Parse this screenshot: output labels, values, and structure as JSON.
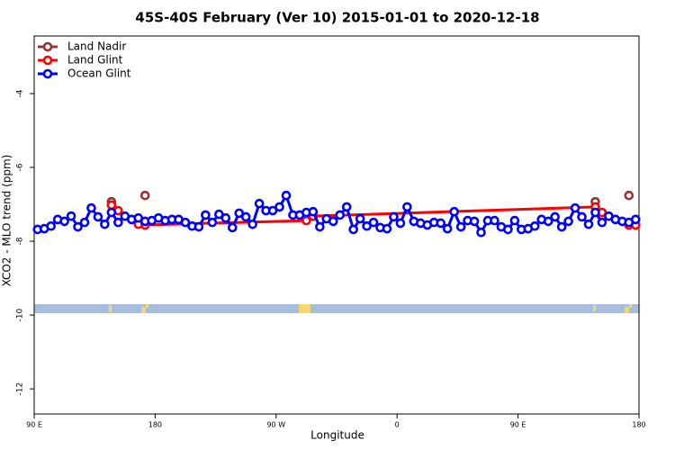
{
  "chart_data": {
    "type": "line",
    "title": "45S-40S February (Ver 10)   2015-01-01 to 2020-12-18",
    "x_label": "Longitude",
    "y_label": "XCO2 - MLO trend (ppm)",
    "xlim": [
      90,
      540
    ],
    "ylim": [
      -12.68,
      -2.44
    ],
    "xticks": [
      {
        "value": 90,
        "label": "90 E"
      },
      {
        "value": 180,
        "label": "180"
      },
      {
        "value": 270,
        "label": "90 W"
      },
      {
        "value": 360,
        "label": "0"
      },
      {
        "value": 450,
        "label": "90 E"
      },
      {
        "value": 540,
        "label": "180"
      }
    ],
    "yticks": [
      -4,
      -6,
      -8,
      -10,
      -12
    ],
    "legend": "top-left",
    "series": [
      {
        "name": "Land Nadir",
        "color": "#993333",
        "x": [
          147.5,
          172.5,
          507.5,
          532.5
        ],
        "values": [
          -6.93,
          -6.76,
          -6.93,
          -6.76
        ]
      },
      {
        "name": "Land Glint",
        "color": "#ff0000",
        "x": [
          147.5,
          152.5,
          167.5,
          172.5,
          292.5,
          297.5,
          507.5,
          512.5,
          532.5,
          537.5
        ],
        "values": [
          -7.02,
          -7.17,
          -7.54,
          -7.56,
          -7.44,
          -7.32,
          -7.07,
          -7.22,
          -7.56,
          -7.56
        ]
      },
      {
        "name": "Ocean Glint",
        "color": "#0000ff",
        "x": [
          92.5,
          97.5,
          102.5,
          107.5,
          112.5,
          117.5,
          122.5,
          127.5,
          132.5,
          137.5,
          142.5,
          147.5,
          152.5,
          157.5,
          162.5,
          167.5,
          172.5,
          177.5,
          182.5,
          187.5,
          192.5,
          197.5,
          202.5,
          207.5,
          212.5,
          217.5,
          222.5,
          227.5,
          232.5,
          237.5,
          242.5,
          247.5,
          252.5,
          257.5,
          262.5,
          267.5,
          272.5,
          277.5,
          282.5,
          287.5,
          292.5,
          297.5,
          302.5,
          307.5,
          312.5,
          317.5,
          322.5,
          327.5,
          332.5,
          337.5,
          342.5,
          347.5,
          352.5,
          357.5,
          362.5,
          367.5,
          372.5,
          377.5,
          382.5,
          387.5,
          392.5,
          397.5,
          402.5,
          407.5,
          412.5,
          417.5,
          422.5,
          427.5,
          432.5,
          437.5,
          442.5,
          447.5,
          452.5,
          457.5,
          462.5,
          467.5,
          472.5,
          477.5,
          482.5,
          487.5,
          492.5,
          497.5,
          502.5,
          507.5,
          512.5,
          517.5,
          522.5,
          527.5,
          532.5,
          537.5
        ],
        "values": [
          -7.68,
          -7.66,
          -7.59,
          -7.41,
          -7.46,
          -7.32,
          -7.61,
          -7.49,
          -7.1,
          -7.34,
          -7.54,
          -7.22,
          -7.49,
          -7.32,
          -7.41,
          -7.37,
          -7.46,
          -7.44,
          -7.37,
          -7.44,
          -7.41,
          -7.41,
          -7.49,
          -7.59,
          -7.61,
          -7.29,
          -7.49,
          -7.27,
          -7.37,
          -7.63,
          -7.24,
          -7.34,
          -7.54,
          -6.98,
          -7.17,
          -7.17,
          -7.07,
          -6.76,
          -7.29,
          -7.29,
          -7.22,
          -7.2,
          -7.61,
          -7.39,
          -7.46,
          -7.29,
          -7.07,
          -7.68,
          -7.39,
          -7.59,
          -7.49,
          -7.63,
          -7.66,
          -7.34,
          -7.51,
          -7.07,
          -7.46,
          -7.51,
          -7.56,
          -7.49,
          -7.51,
          -7.66,
          -7.2,
          -7.61,
          -7.44,
          -7.46,
          -7.76,
          -7.44,
          -7.44,
          -7.61,
          -7.68,
          -7.44,
          -7.68,
          -7.66,
          -7.59,
          -7.41,
          -7.46,
          -7.34,
          -7.61,
          -7.46,
          -7.1,
          -7.34,
          -7.54,
          -7.22,
          -7.49,
          -7.32,
          -7.41,
          -7.46,
          -7.49,
          -7.41
        ]
      }
    ]
  }
}
